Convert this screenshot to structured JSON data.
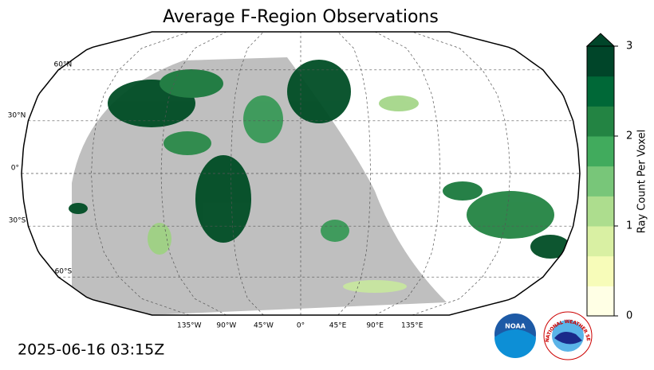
{
  "title": "Average F-Region Observations",
  "lat_labels": [
    {
      "value": 60,
      "label": "60°N"
    },
    {
      "value": 30,
      "label": "30°N"
    },
    {
      "value": 0,
      "label": "0°"
    },
    {
      "value": -30,
      "label": "30°S"
    },
    {
      "value": -60,
      "label": "60°S"
    }
  ],
  "lon_labels": [
    {
      "value": -135,
      "label": "135°W"
    },
    {
      "value": -90,
      "label": "90°W"
    },
    {
      "value": -45,
      "label": "45°W"
    },
    {
      "value": 0,
      "label": "0°"
    },
    {
      "value": 45,
      "label": "45°E"
    },
    {
      "value": 90,
      "label": "90°E"
    },
    {
      "value": 135,
      "label": "135°E"
    }
  ],
  "colorbar": {
    "label": "Ray Count Per Voxel",
    "lim": [
      0,
      3
    ],
    "ticks": [
      0,
      1,
      2,
      3
    ],
    "colors": [
      "#ffffe5",
      "#f7fcb9",
      "#d9f0a3",
      "#addd8e",
      "#78c679",
      "#41ab5d",
      "#238443",
      "#006837",
      "#004529"
    ]
  },
  "timestamp": "2025-06-16 03:15Z",
  "logos": {
    "noaa": "NOAA",
    "nws": "NATIONAL WEATHER SERVICE"
  }
}
